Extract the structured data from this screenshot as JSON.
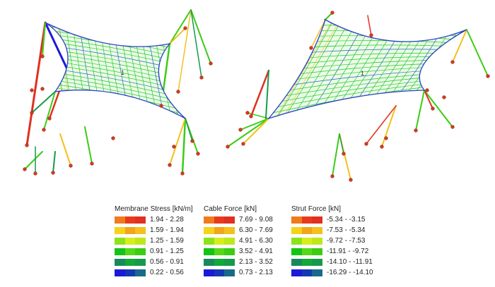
{
  "models": [
    {
      "label": "1"
    },
    {
      "label": "1"
    }
  ],
  "legends": [
    {
      "title": "Membrane Stress [kN/m]",
      "rows": [
        {
          "range": "1.94 - 2.28",
          "colors": [
            "#f07a1c",
            "#e83a1a",
            "#e03020"
          ]
        },
        {
          "range": "1.59 - 1.94",
          "colors": [
            "#f6d21a",
            "#f2a41a",
            "#f4c01c"
          ]
        },
        {
          "range": "1.25 - 1.59",
          "colors": [
            "#8ee21a",
            "#d6ee1c",
            "#bfe81a"
          ]
        },
        {
          "range": "0.91 - 1.25",
          "colors": [
            "#14c414",
            "#56d818",
            "#3ccc16"
          ]
        },
        {
          "range": "0.56 - 0.91",
          "colors": [
            "#178a5c",
            "#12a83a",
            "#169a4a"
          ]
        },
        {
          "range": "0.22 - 0.56",
          "colors": [
            "#1a1ad8",
            "#1438b4",
            "#186a8a"
          ]
        }
      ]
    },
    {
      "title": "Cable Force [kN]",
      "rows": [
        {
          "range": "7.69 - 9.08",
          "colors": [
            "#f07a1c",
            "#e83a1a",
            "#e03020"
          ]
        },
        {
          "range": "6.30 - 7.69",
          "colors": [
            "#f6d21a",
            "#f2a41a",
            "#f4c01c"
          ]
        },
        {
          "range": "4.91 - 6.30",
          "colors": [
            "#8ee21a",
            "#d6ee1c",
            "#bfe81a"
          ]
        },
        {
          "range": "3.52 - 4.91",
          "colors": [
            "#14c414",
            "#56d818",
            "#3ccc16"
          ]
        },
        {
          "range": "2.13 - 3.52",
          "colors": [
            "#178a5c",
            "#12a83a",
            "#169a4a"
          ]
        },
        {
          "range": "0.73 - 2.13",
          "colors": [
            "#1a1ad8",
            "#1438b4",
            "#186a8a"
          ]
        }
      ]
    },
    {
      "title": "Strut Force [kN]",
      "rows": [
        {
          "range": "-5.34 - -3.15",
          "colors": [
            "#f07a1c",
            "#e83a1a",
            "#e03020"
          ]
        },
        {
          "range": "-7.53 - -5.34",
          "colors": [
            "#f6d21a",
            "#f2a41a",
            "#f4c01c"
          ]
        },
        {
          "range": "-9.72 - -7.53",
          "colors": [
            "#8ee21a",
            "#d6ee1c",
            "#bfe81a"
          ]
        },
        {
          "range": "-11.91 - -9.72",
          "colors": [
            "#14c414",
            "#56d818",
            "#3ccc16"
          ]
        },
        {
          "range": "-14.10 - -11.91",
          "colors": [
            "#178a5c",
            "#12a83a",
            "#169a4a"
          ]
        },
        {
          "range": "-16.29 - -14.10",
          "colors": [
            "#1a1ad8",
            "#1438b4",
            "#186a8a"
          ]
        }
      ]
    }
  ],
  "colors": {
    "mesh": "#22c832",
    "edge_cable": "#2a40c8",
    "anchor": "#d23c1e",
    "strut_blue": "#1a1ad8",
    "strut_red": "#e03020",
    "strut_green": "#3ccc16",
    "strut_teal": "#169a4a",
    "strut_yellow": "#f4c01c",
    "strut_orange": "#f07a1c"
  }
}
